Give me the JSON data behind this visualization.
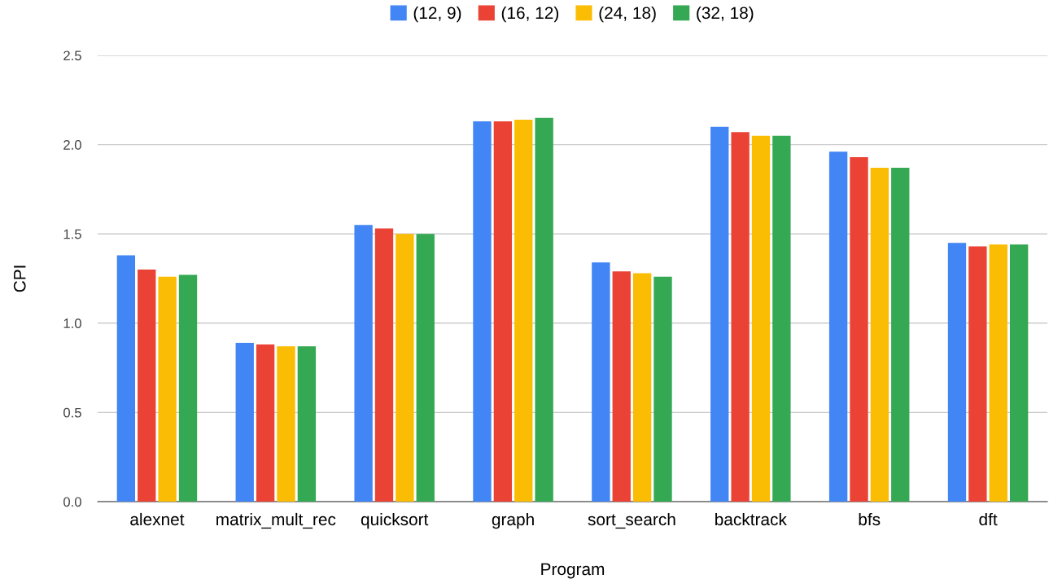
{
  "chart_data": {
    "type": "bar",
    "xlabel": "Program",
    "ylabel": "CPI",
    "categories": [
      "alexnet",
      "matrix_mult_rec",
      "quicksort",
      "graph",
      "sort_search",
      "backtrack",
      "bfs",
      "dft"
    ],
    "series": [
      {
        "name": "(12, 9)",
        "color": "#4285f4",
        "values": [
          1.38,
          0.89,
          1.55,
          2.13,
          1.34,
          2.1,
          1.96,
          1.45
        ]
      },
      {
        "name": "(16, 12)",
        "color": "#ea4335",
        "values": [
          1.3,
          0.88,
          1.53,
          2.13,
          1.29,
          2.07,
          1.93,
          1.43
        ]
      },
      {
        "name": "(24, 18)",
        "color": "#fbbc04",
        "values": [
          1.26,
          0.87,
          1.5,
          2.14,
          1.28,
          2.05,
          1.87,
          1.44
        ]
      },
      {
        "name": "(32, 18)",
        "color": "#34a853",
        "values": [
          1.27,
          0.87,
          1.5,
          2.15,
          1.26,
          2.05,
          1.87,
          1.44
        ]
      }
    ],
    "ylim": [
      0,
      2.5
    ],
    "yticks": [
      {
        "value": 0,
        "label": "0.0"
      },
      {
        "value": 0.5,
        "label": "0.5"
      },
      {
        "value": 1,
        "label": "1.0"
      },
      {
        "value": 1.5,
        "label": "1.5"
      },
      {
        "value": 2,
        "label": "2.0"
      },
      {
        "value": 2.5,
        "label": "2.5"
      }
    ],
    "grid": "y",
    "legend": "top"
  }
}
